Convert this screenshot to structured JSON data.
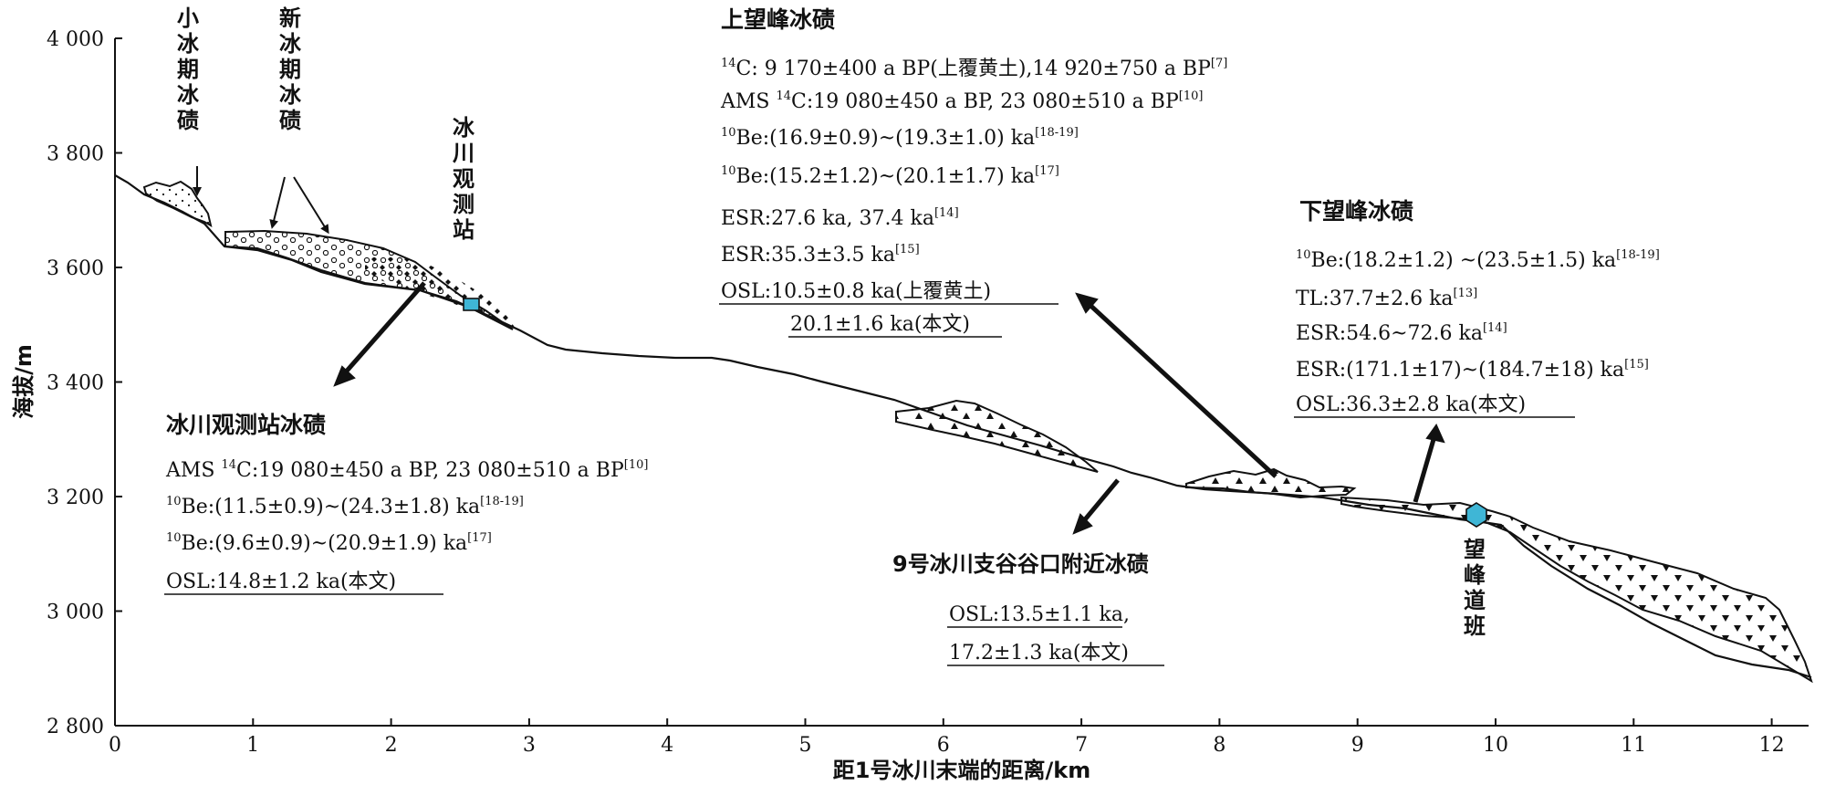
{
  "axes": {
    "x_label": "距1号冰川末端的距离/km",
    "y_label": "海拔/m",
    "x_ticks": [
      "0",
      "1",
      "2",
      "3",
      "4",
      "5",
      "6",
      "7",
      "8",
      "9",
      "10",
      "11",
      "12"
    ],
    "y_ticks": [
      "2 800",
      "3 000",
      "3 200",
      "3 400",
      "3 600",
      "3 800",
      "4 000"
    ]
  },
  "top_labels": {
    "little_ice_age_moraine": [
      "小",
      "冰",
      "期",
      "冰",
      "碛"
    ],
    "neoglacial_moraine": [
      "新",
      "冰",
      "期",
      "冰",
      "碛"
    ],
    "glacier_station": [
      "冰",
      "川",
      "观",
      "测",
      "站"
    ],
    "wangfeng_road_station": [
      "望",
      "峰",
      "道",
      "班"
    ]
  },
  "upper_wangfeng": {
    "title": "上望峰冰碛",
    "lines": [
      {
        "pre": "",
        "sup": "14",
        "mid": "C: 9 170±400 a BP(上覆黄土),14 920±750 a BP",
        "ref": "[7]"
      },
      {
        "pre": "AMS ",
        "sup": "14",
        "mid": "C:19 080±450 a BP, 23 080±510 a BP",
        "ref": "[10]"
      },
      {
        "pre": "",
        "sup": "10",
        "mid": "Be:(16.9±0.9)~(19.3±1.0) ka",
        "ref": "[18-19]"
      },
      {
        "pre": "",
        "sup": "10",
        "mid": "Be:(15.2±1.2)~(20.1±1.7) ka",
        "ref": "[17]"
      },
      {
        "pre": "",
        "sup": "",
        "mid": "ESR:27.6 ka, 37.4 ka",
        "ref": "[14]"
      },
      {
        "pre": "",
        "sup": "",
        "mid": "ESR:35.3±3.5 ka",
        "ref": "[15]"
      }
    ],
    "osl_line1": "OSL:10.5±0.8 ka(上覆黄土)",
    "osl_line2": "20.1±1.6 ka(本文)"
  },
  "lower_wangfeng": {
    "title": "下望峰冰碛",
    "lines": [
      {
        "pre": "",
        "sup": "10",
        "mid": "Be:(18.2±1.2) ~(23.5±1.5) ka",
        "ref": "[18-19]"
      },
      {
        "pre": "",
        "sup": "",
        "mid": "TL:37.7±2.6 ka",
        "ref": "[13]"
      },
      {
        "pre": "",
        "sup": "",
        "mid": "ESR:54.6~72.6 ka",
        "ref": "[14]"
      },
      {
        "pre": "",
        "sup": "",
        "mid": "ESR:(171.1±17)~(184.7±18) ka",
        "ref": "[15]"
      }
    ],
    "osl": "OSL:36.3±2.8 ka(本文)"
  },
  "station_moraine": {
    "title": "冰川观测站冰碛",
    "lines": [
      {
        "pre": "AMS ",
        "sup": "14",
        "mid": "C:19 080±450 a BP, 23 080±510 a BP",
        "ref": "[10]"
      },
      {
        "pre": "",
        "sup": "10",
        "mid": "Be:(11.5±0.9)~(24.3±1.8) ka",
        "ref": "[18-19]"
      },
      {
        "pre": "",
        "sup": "10",
        "mid": "Be:(9.6±0.9)~(20.9±1.9) ka",
        "ref": "[17]"
      }
    ],
    "osl": "OSL:14.8±1.2 ka(本文)"
  },
  "valley_nine": {
    "title": "9号冰川支谷谷口附近冰碛",
    "osl_line1": "OSL:13.5±1.1 ka,",
    "osl_line2": "17.2±1.3 ka(本文)"
  },
  "colors": {
    "station_marker": "#3fb6d6",
    "line": "#111111"
  }
}
